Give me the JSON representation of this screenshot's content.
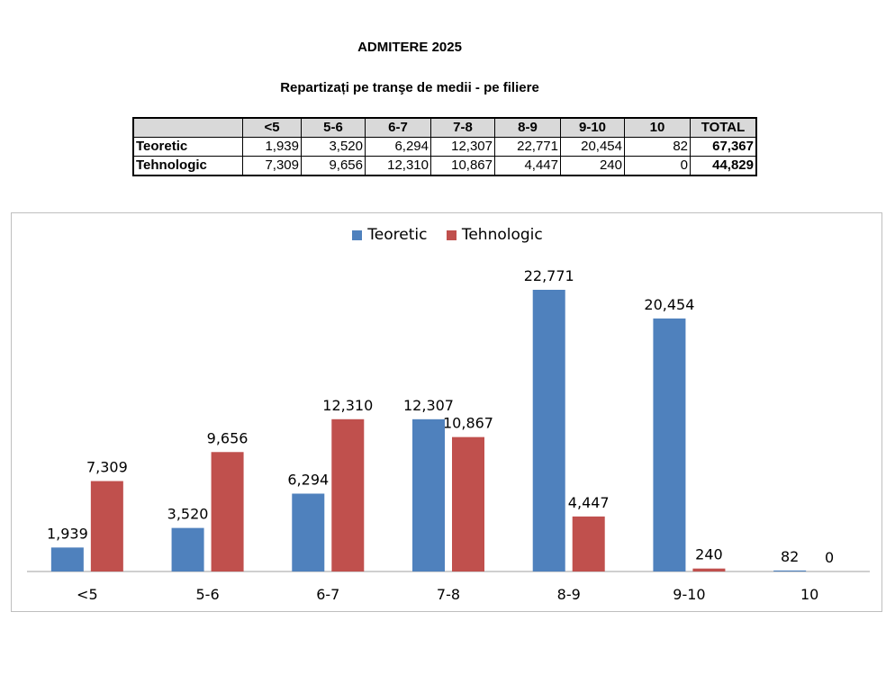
{
  "title": "ADMITERE 2025",
  "subtitle": "Repartizați pe tranşe de medii - pe filiere",
  "table": {
    "headers": [
      "",
      "<5",
      "5-6",
      "6-7",
      "7-8",
      "8-9",
      "9-10",
      "10",
      "TOTAL"
    ],
    "rows": [
      {
        "label": "Teoretic",
        "values": [
          "1,939",
          "3,520",
          "6,294",
          "12,307",
          "22,771",
          "20,454",
          "82"
        ],
        "total": "67,367"
      },
      {
        "label": "Tehnologic",
        "values": [
          "7,309",
          "9,656",
          "12,310",
          "10,867",
          "4,447",
          "240",
          "0"
        ],
        "total": "44,829"
      }
    ]
  },
  "chart_data": {
    "type": "bar",
    "categories": [
      "<5",
      "5-6",
      "6-7",
      "7-8",
      "8-9",
      "9-10",
      "10"
    ],
    "series": [
      {
        "name": "Teoretic",
        "color": "#4f81bd",
        "values": [
          1939,
          3520,
          6294,
          12307,
          22771,
          20454,
          82
        ],
        "labels": [
          "1,939",
          "3,520",
          "6,294",
          "12,307",
          "22,771",
          "20,454",
          "82"
        ]
      },
      {
        "name": "Tehnologic",
        "color": "#c0504d",
        "values": [
          7309,
          9656,
          12310,
          10867,
          4447,
          240,
          0
        ],
        "labels": [
          "7,309",
          "9,656",
          "12,310",
          "10,867",
          "4,447",
          "240",
          "0"
        ]
      }
    ],
    "ylim": [
      0,
      25000
    ],
    "grid": false,
    "legend_position": "top-center"
  }
}
